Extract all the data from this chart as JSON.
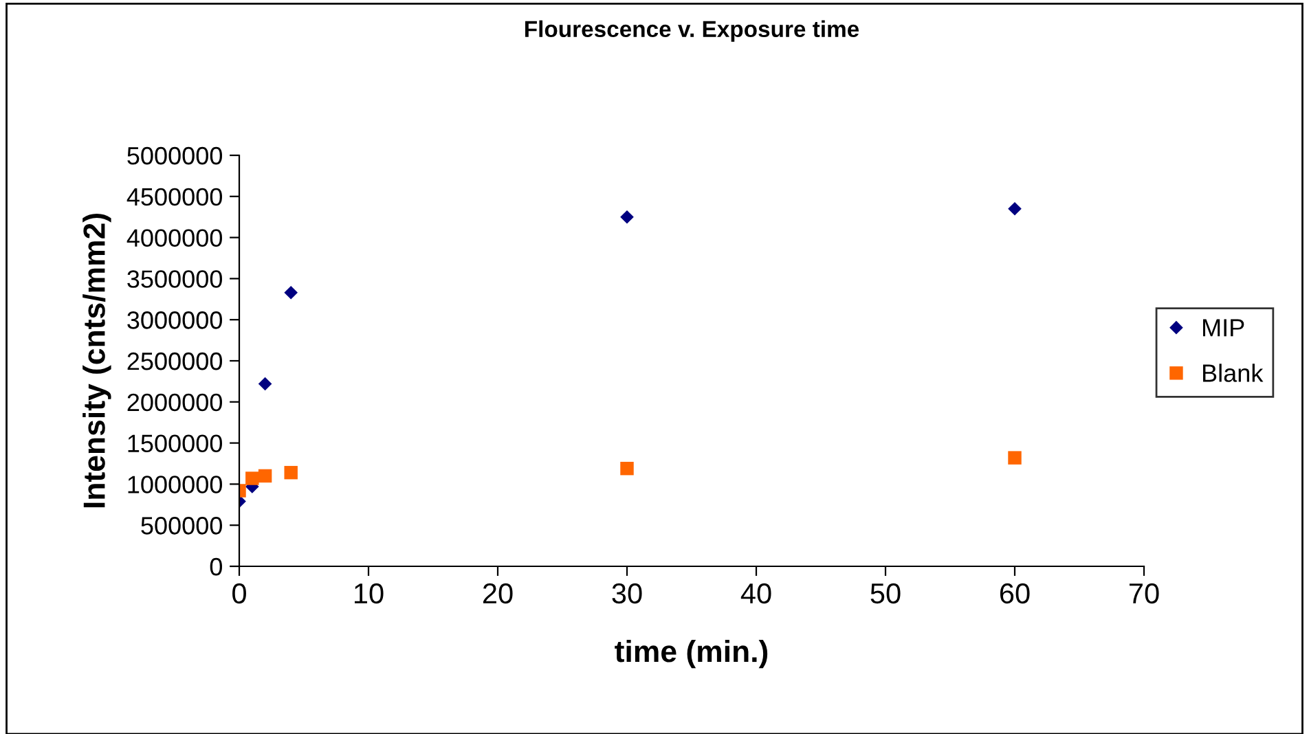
{
  "chart_data": {
    "type": "scatter",
    "title": "Flourescence v. Exposure time",
    "xlabel": "time (min.)",
    "ylabel": "Intensity (cnts/mm2)",
    "series": [
      {
        "name": "MIP",
        "color": "#000080",
        "marker": "diamond",
        "x": [
          0,
          1,
          2,
          4,
          30,
          60
        ],
        "values": [
          790000,
          970000,
          2220000,
          3330000,
          4250000,
          4350000
        ]
      },
      {
        "name": "Blank",
        "color": "#ff6600",
        "marker": "square",
        "x": [
          0,
          1,
          2,
          4,
          30,
          60
        ],
        "values": [
          920000,
          1070000,
          1100000,
          1140000,
          1190000,
          1320000
        ]
      }
    ],
    "xlim": [
      0,
      70
    ],
    "xticks": [
      0,
      10,
      20,
      30,
      40,
      50,
      60,
      70
    ],
    "ylim": [
      0,
      5000000
    ],
    "yticks": [
      0,
      500000,
      1000000,
      1500000,
      2000000,
      2500000,
      3000000,
      3500000,
      4000000,
      4500000,
      5000000
    ],
    "grid": false,
    "legend": "right"
  }
}
